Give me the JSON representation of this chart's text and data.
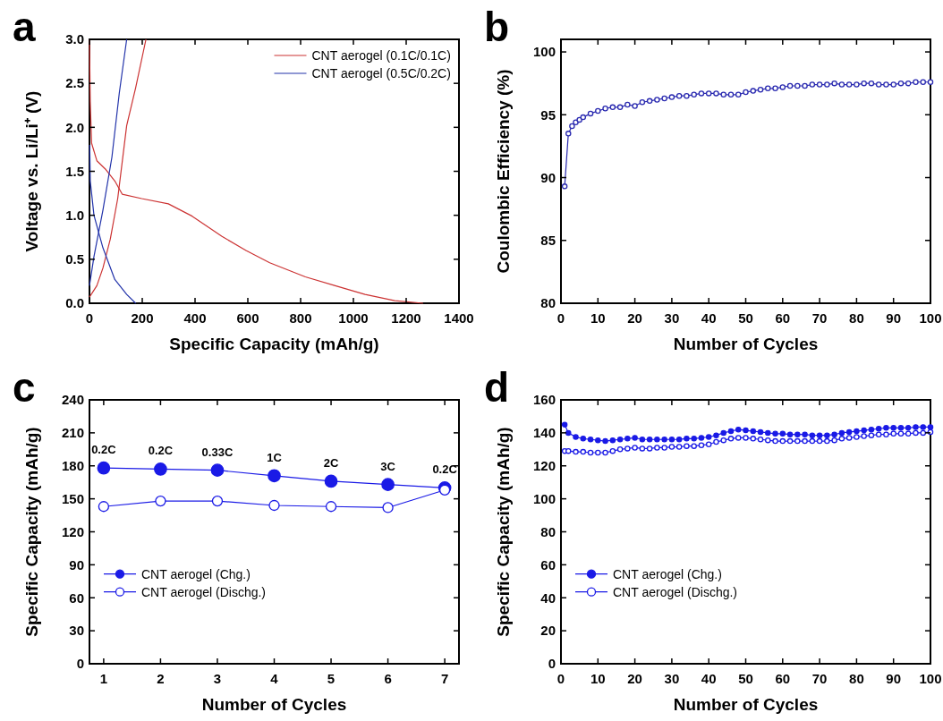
{
  "chart_data": [
    {
      "type": "line",
      "title": "a",
      "xlabel": "Specific Capacity (mAh/g)",
      "ylabel": "Voltage vs. Li/Li⁺ (V)",
      "xlim": [
        0,
        1400
      ],
      "xticks": [
        0,
        200,
        400,
        600,
        800,
        1000,
        1200,
        1400
      ],
      "ylim": [
        0,
        3
      ],
      "yticks": [
        {
          "value": 0,
          "label": "0.0"
        },
        {
          "value": 0.5,
          "label": "0.5"
        },
        {
          "value": 1,
          "label": "1.0"
        },
        {
          "value": 1.5,
          "label": "1.5"
        },
        {
          "value": 2,
          "label": "2.0"
        },
        {
          "value": 2.5,
          "label": "2.5"
        },
        {
          "value": 3,
          "label": "3.0"
        }
      ],
      "legend": "top right",
      "grid": false,
      "series": [
        {
          "name": "CNT aerogel (0.1C/0.1C)",
          "color": "#cc3333",
          "x": [
            0,
            3,
            8,
            28,
            62,
            96,
            124,
            198,
            299,
            389,
            502,
            593,
            683,
            818,
            931,
            1044,
            1157,
            1264
          ],
          "values": [
            3.0,
            2.29,
            1.82,
            1.62,
            1.52,
            1.39,
            1.24,
            1.19,
            1.13,
            0.99,
            0.76,
            0.6,
            0.46,
            0.3,
            0.2,
            0.1,
            0.03,
            0
          ]
        },
        {
          "color": "#cc3333",
          "x": [
            0,
            28,
            51,
            79,
            107,
            141,
            175,
            214
          ],
          "values": [
            0.07,
            0.2,
            0.4,
            0.73,
            1.19,
            2.02,
            2.45,
            3.0
          ]
        },
        {
          "name": "CNT aerogel (0.5C/0.2C)",
          "color": "#2233aa",
          "x": [
            1,
            3,
            17,
            51,
            96,
            141,
            175
          ],
          "values": [
            1.8,
            1.39,
            1.0,
            0.63,
            0.27,
            0.1,
            0
          ]
        },
        {
          "color": "#2233aa",
          "x": [
            0,
            17,
            51,
            85,
            113,
            141
          ],
          "values": [
            0.2,
            0.53,
            1.06,
            1.66,
            2.39,
            3.0
          ]
        }
      ]
    },
    {
      "type": "line",
      "title": "b",
      "xlabel": "Number of Cycles",
      "ylabel": "Coulombic Efficiency (%)",
      "xlim": [
        0,
        100
      ],
      "xticks": [
        0,
        10,
        20,
        30,
        40,
        50,
        60,
        70,
        80,
        90,
        100
      ],
      "ylim": [
        80,
        101
      ],
      "yticks": [
        80,
        85,
        90,
        95,
        100
      ],
      "marker": "circle",
      "grid": false,
      "series": [
        {
          "color": "#2a2ab0",
          "x": [
            1,
            2,
            3,
            4,
            5,
            6,
            8,
            10,
            12,
            14,
            16,
            18,
            20,
            22,
            24,
            26,
            28,
            30,
            32,
            34,
            36,
            38,
            40,
            42,
            44,
            46,
            48,
            50,
            52,
            54,
            56,
            58,
            60,
            62,
            64,
            66,
            68,
            70,
            72,
            74,
            76,
            78,
            80,
            82,
            84,
            86,
            88,
            90,
            92,
            94,
            96,
            98,
            100
          ],
          "values": [
            89.3,
            93.5,
            94.1,
            94.4,
            94.6,
            94.8,
            95.1,
            95.3,
            95.5,
            95.6,
            95.6,
            95.8,
            95.7,
            96.0,
            96.1,
            96.2,
            96.3,
            96.4,
            96.5,
            96.5,
            96.6,
            96.7,
            96.7,
            96.7,
            96.6,
            96.6,
            96.6,
            96.8,
            96.9,
            97.0,
            97.1,
            97.1,
            97.2,
            97.3,
            97.3,
            97.3,
            97.4,
            97.4,
            97.4,
            97.5,
            97.4,
            97.4,
            97.4,
            97.5,
            97.5,
            97.4,
            97.4,
            97.4,
            97.5,
            97.5,
            97.6,
            97.6,
            97.6
          ]
        }
      ]
    },
    {
      "type": "line",
      "title": "c",
      "xlabel": "Number of Cycles",
      "ylabel": "Specific Capacity (mAh/g)",
      "xlim": [
        0.75,
        7.25
      ],
      "xticks": [
        1,
        2,
        3,
        4,
        5,
        6,
        7
      ],
      "ylim": [
        0,
        240
      ],
      "yticks": [
        0,
        30,
        60,
        90,
        120,
        150,
        180,
        210,
        240
      ],
      "marker": "circle",
      "legend": "bottom left",
      "grid": false,
      "series": [
        {
          "name": "CNT aerogel (Chg.)",
          "color": "#1a1ae6",
          "x": [
            1,
            2,
            3,
            4,
            5,
            6,
            7
          ],
          "values": [
            178,
            177,
            176,
            171,
            166,
            163,
            160
          ]
        },
        {
          "name": "CNT aerogel (Dischg.)",
          "color": "#1a1ae6",
          "x": [
            1,
            2,
            3,
            4,
            5,
            6,
            7
          ],
          "values": [
            143,
            148,
            148,
            144,
            143,
            142,
            158
          ]
        }
      ],
      "annotations": [
        {
          "text": "0.2C",
          "x": 1,
          "y": 178
        },
        {
          "text": "0.2C",
          "x": 2,
          "y": 177
        },
        {
          "text": "0.33C",
          "x": 3,
          "y": 176
        },
        {
          "text": "1C",
          "x": 4,
          "y": 171
        },
        {
          "text": "2C",
          "x": 5,
          "y": 166
        },
        {
          "text": "3C",
          "x": 6,
          "y": 163
        },
        {
          "text": "0.2C",
          "x": 7,
          "y": 160
        }
      ]
    },
    {
      "type": "line",
      "title": "d",
      "xlabel": "Number of Cycles",
      "ylabel": "Specific Capacity (mAh/g)",
      "xlim": [
        0,
        100
      ],
      "xticks": [
        0,
        10,
        20,
        30,
        40,
        50,
        60,
        70,
        80,
        90,
        100
      ],
      "ylim": [
        0,
        160
      ],
      "yticks": [
        0,
        20,
        40,
        60,
        80,
        100,
        120,
        140,
        160
      ],
      "marker": "circle",
      "legend": "bottom left",
      "grid": false,
      "series": [
        {
          "name": "CNT aerogel (Chg.)",
          "color": "#1a1ae6",
          "x": [
            1,
            2,
            4,
            6,
            8,
            10,
            12,
            14,
            16,
            18,
            20,
            22,
            24,
            26,
            28,
            30,
            32,
            34,
            36,
            38,
            40,
            42,
            44,
            46,
            48,
            50,
            52,
            54,
            56,
            58,
            60,
            62,
            64,
            66,
            68,
            70,
            72,
            74,
            76,
            78,
            80,
            82,
            84,
            86,
            88,
            90,
            92,
            94,
            96,
            98,
            100
          ],
          "values": [
            145,
            140,
            137.5,
            136.5,
            136,
            135.5,
            135,
            135.5,
            136,
            136.5,
            137,
            136,
            136,
            136,
            136,
            136,
            136,
            136.5,
            136.5,
            137,
            137.5,
            138.5,
            140,
            141,
            142,
            141.5,
            141,
            140.5,
            140,
            139.5,
            139.5,
            139,
            139,
            139,
            138.5,
            138.5,
            138.5,
            139,
            140,
            140.5,
            141,
            141.5,
            142,
            142.5,
            143,
            143,
            143,
            143,
            143.5,
            143.5,
            143.5
          ]
        },
        {
          "name": "CNT aerogel (Dischg.)",
          "color": "#1a1ae6",
          "x": [
            1,
            2,
            4,
            6,
            8,
            10,
            12,
            14,
            16,
            18,
            20,
            22,
            24,
            26,
            28,
            30,
            32,
            34,
            36,
            38,
            40,
            42,
            44,
            46,
            48,
            50,
            52,
            54,
            56,
            58,
            60,
            62,
            64,
            66,
            68,
            70,
            72,
            74,
            76,
            78,
            80,
            82,
            84,
            86,
            88,
            90,
            92,
            94,
            96,
            98,
            100
          ],
          "values": [
            129,
            129,
            128.5,
            128.5,
            128,
            128,
            128,
            129,
            130,
            130.5,
            131,
            130.5,
            130.5,
            131,
            131,
            131.5,
            131.5,
            132,
            132,
            132.5,
            133,
            134.5,
            135.5,
            136.5,
            137,
            137,
            136.5,
            136,
            135.5,
            135,
            135,
            135,
            135,
            135,
            135,
            135,
            135,
            135.5,
            136.5,
            137,
            137.5,
            138,
            138.5,
            139,
            139,
            139.5,
            139.5,
            139.5,
            140,
            140,
            140.5
          ]
        }
      ]
    }
  ]
}
